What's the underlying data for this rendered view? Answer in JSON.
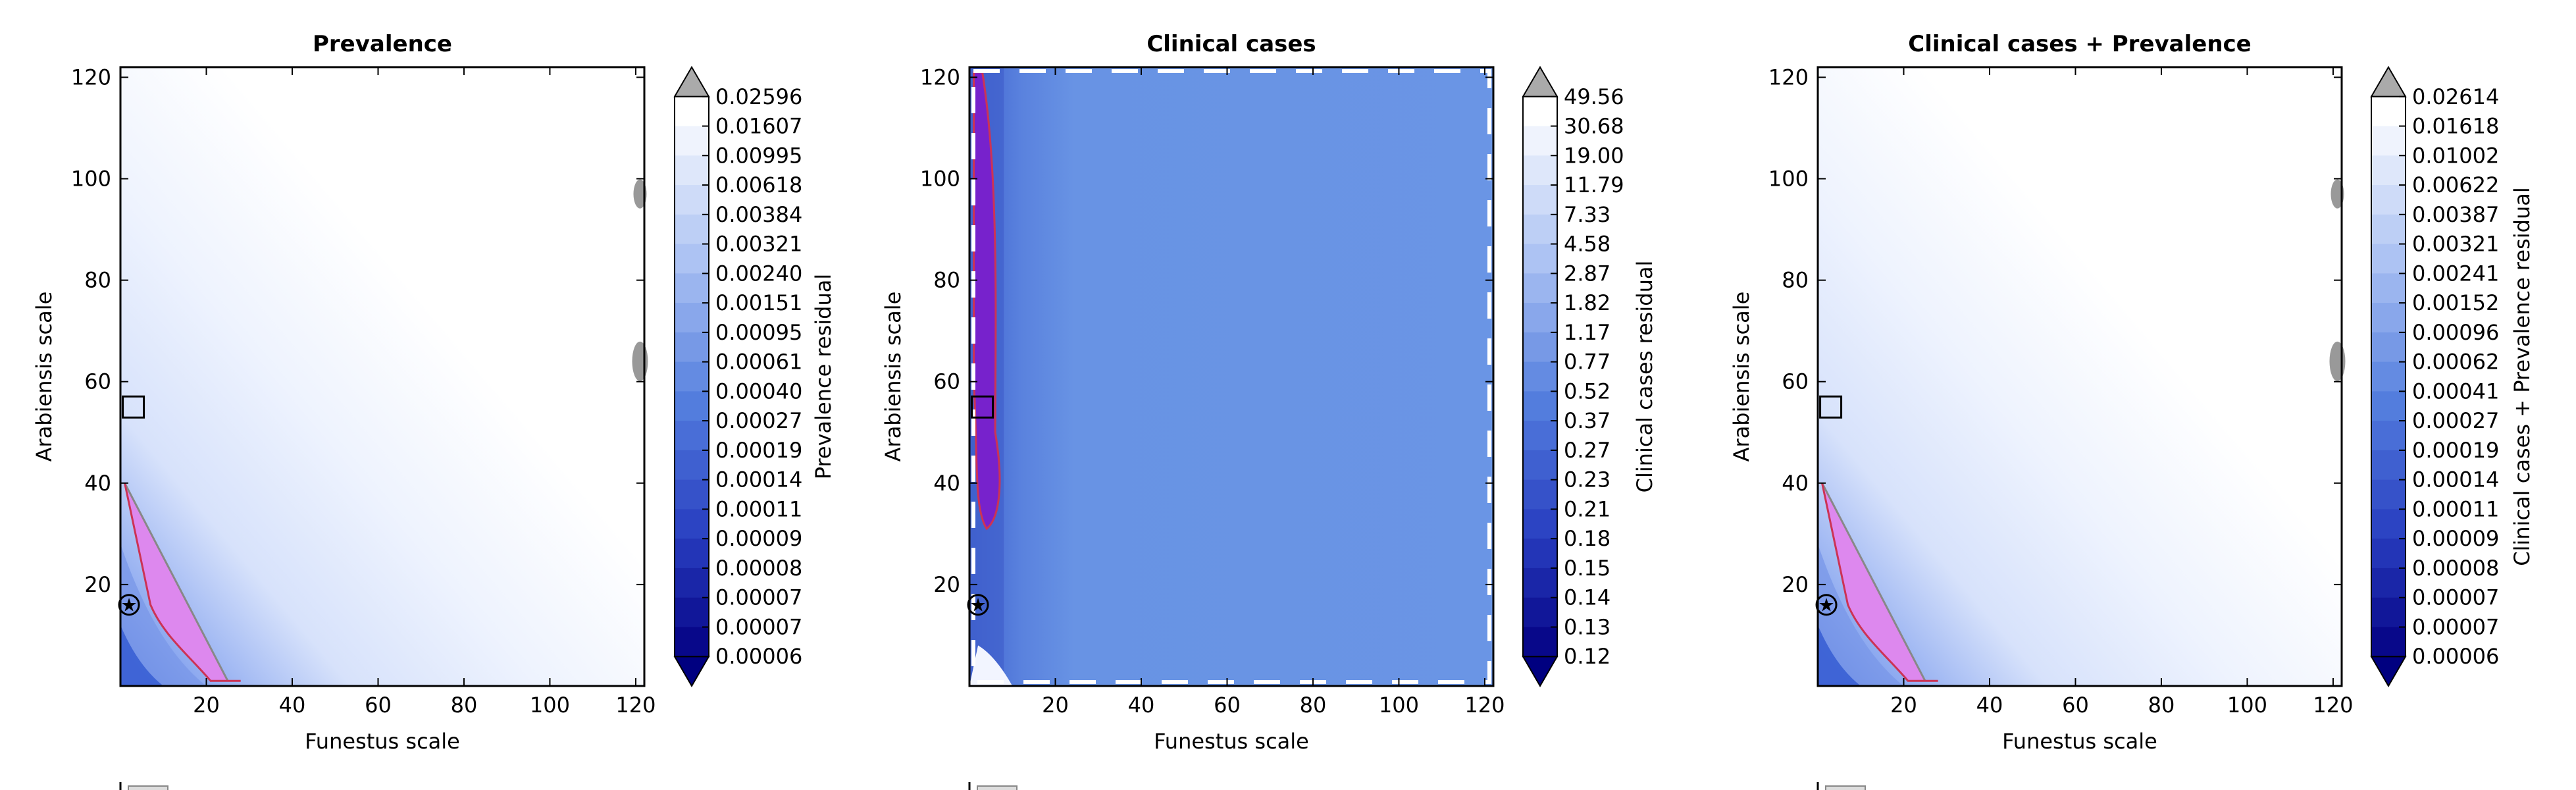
{
  "chart_data": [
    {
      "type": "heatmap",
      "title": "Prevalence",
      "xlabel": "Funestus scale",
      "ylabel": "Arabiensis scale",
      "xlim": [
        0,
        122
      ],
      "ylim": [
        0,
        122
      ],
      "xticks": [
        20,
        40,
        60,
        80,
        100,
        120
      ],
      "yticks": [
        20,
        40,
        60,
        80,
        100,
        120
      ],
      "colorbar_label": "Prevalence residual",
      "colorbar_levels": [
        "0.02596",
        "0.01607",
        "0.00995",
        "0.00618",
        "0.00384",
        "0.00321",
        "0.00240",
        "0.00151",
        "0.00095",
        "0.00061",
        "0.00040",
        "0.00027",
        "0.00019",
        "0.00014",
        "0.00011",
        "0.00009",
        "0.00008",
        "0.00007",
        "0.00007",
        "0.00006"
      ],
      "markers": {
        "square": [
          3,
          55
        ],
        "star": [
          2,
          16
        ]
      },
      "region": {
        "color": "#dd88ee",
        "boundary_color": "#cc3355"
      }
    },
    {
      "type": "heatmap",
      "title": "Clinical cases",
      "xlabel": "Funestus scale",
      "ylabel": "Arabiensis scale",
      "xlim": [
        0,
        122
      ],
      "ylim": [
        0,
        122
      ],
      "xticks": [
        20,
        40,
        60,
        80,
        100,
        120
      ],
      "yticks": [
        20,
        40,
        60,
        80,
        100,
        120
      ],
      "colorbar_label": "Clinical cases residual",
      "colorbar_levels": [
        "49.56",
        "30.68",
        "19.00",
        "11.79",
        "7.33",
        "4.58",
        "2.87",
        "1.82",
        "1.17",
        "0.77",
        "0.52",
        "0.37",
        "0.27",
        "0.23",
        "0.21",
        "0.18",
        "0.15",
        "0.14",
        "0.13",
        "0.12"
      ],
      "markers": {
        "square": [
          3,
          55
        ],
        "star": [
          2,
          16
        ]
      },
      "region": {
        "color": "#7722cc",
        "boundary_color": "#cc3355"
      }
    },
    {
      "type": "heatmap",
      "title": "Clinical cases + Prevalence",
      "xlabel": "Funestus scale",
      "ylabel": "Arabiensis scale",
      "xlim": [
        0,
        122
      ],
      "ylim": [
        0,
        122
      ],
      "xticks": [
        20,
        40,
        60,
        80,
        100,
        120
      ],
      "yticks": [
        20,
        40,
        60,
        80,
        100,
        120
      ],
      "colorbar_label": "Clinical cases + Prevalence residual",
      "colorbar_levels": [
        "0.02614",
        "0.01618",
        "0.01002",
        "0.00622",
        "0.00387",
        "0.00321",
        "0.00241",
        "0.00152",
        "0.00096",
        "0.00062",
        "0.00041",
        "0.00027",
        "0.00019",
        "0.00014",
        "0.00011",
        "0.00009",
        "0.00008",
        "0.00007",
        "0.00007",
        "0.00006"
      ],
      "markers": {
        "square": [
          3,
          55
        ],
        "star": [
          2,
          16
        ]
      },
      "region": {
        "color": "#dd88ee",
        "boundary_color": "#cc3355"
      }
    }
  ]
}
